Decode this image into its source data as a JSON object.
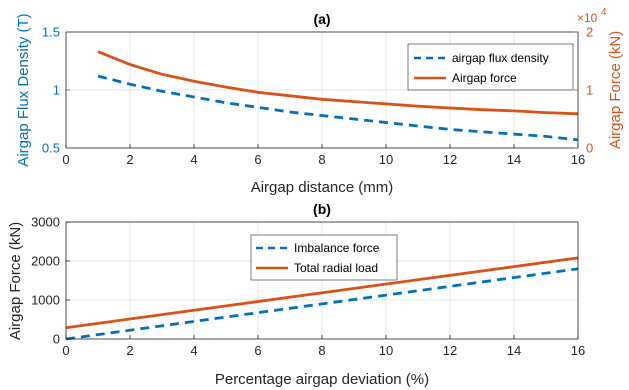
{
  "colors": {
    "blue": "#0072BD",
    "orange": "#D95319",
    "grid": "#e6e6e6",
    "axis": "#262626"
  },
  "chart_data": [
    {
      "type": "line",
      "title": "(a)",
      "xlabel": "Airgap distance (mm)",
      "ylabel_left": "Airgap Flux Density (T)",
      "ylabel_right": "Airgap Force (kN)",
      "right_exponent_base": "×10",
      "right_exponent_power": "4",
      "xlim": [
        0,
        16
      ],
      "ylim_left": [
        0.5,
        1.5
      ],
      "ylim_right": [
        0,
        2
      ],
      "xticks": [
        0,
        2,
        4,
        6,
        8,
        10,
        12,
        14,
        16
      ],
      "yticks_left": [
        0.5,
        1,
        1.5
      ],
      "yticks_right": [
        0,
        1,
        2
      ],
      "grid": true,
      "legend_position": "top-right",
      "x": [
        1,
        2,
        3,
        4,
        5,
        6,
        7,
        8,
        9,
        10,
        11,
        12,
        13,
        14,
        15,
        16
      ],
      "series": [
        {
          "name": "airgap flux density",
          "axis": "left",
          "style": "dashed",
          "color": "#0072BD",
          "values": [
            1.12,
            1.05,
            0.99,
            0.94,
            0.89,
            0.85,
            0.81,
            0.78,
            0.75,
            0.72,
            0.69,
            0.66,
            0.64,
            0.62,
            0.6,
            0.57
          ]
        },
        {
          "name": "Airgap force",
          "axis": "right",
          "style": "solid",
          "color": "#D95319",
          "values": [
            1.66,
            1.44,
            1.27,
            1.15,
            1.05,
            0.96,
            0.9,
            0.84,
            0.8,
            0.76,
            0.72,
            0.69,
            0.66,
            0.64,
            0.61,
            0.59
          ]
        }
      ]
    },
    {
      "type": "line",
      "title": "(b)",
      "xlabel": "Percentage airgap deviation (%)",
      "ylabel": "Airgap Force (kN)",
      "xlim": [
        0,
        16
      ],
      "ylim": [
        0,
        3000
      ],
      "xticks": [
        0,
        2,
        4,
        6,
        8,
        10,
        12,
        14,
        16
      ],
      "yticks": [
        0,
        1000,
        2000,
        3000
      ],
      "grid": true,
      "legend_position": "top-center",
      "x": [
        0,
        16
      ],
      "series": [
        {
          "name": "Imbalance force",
          "style": "dashed",
          "color": "#0072BD",
          "values": [
            0,
            1800
          ]
        },
        {
          "name": "Total radial load",
          "style": "solid",
          "color": "#D95319",
          "values": [
            290,
            2080
          ]
        }
      ]
    }
  ]
}
